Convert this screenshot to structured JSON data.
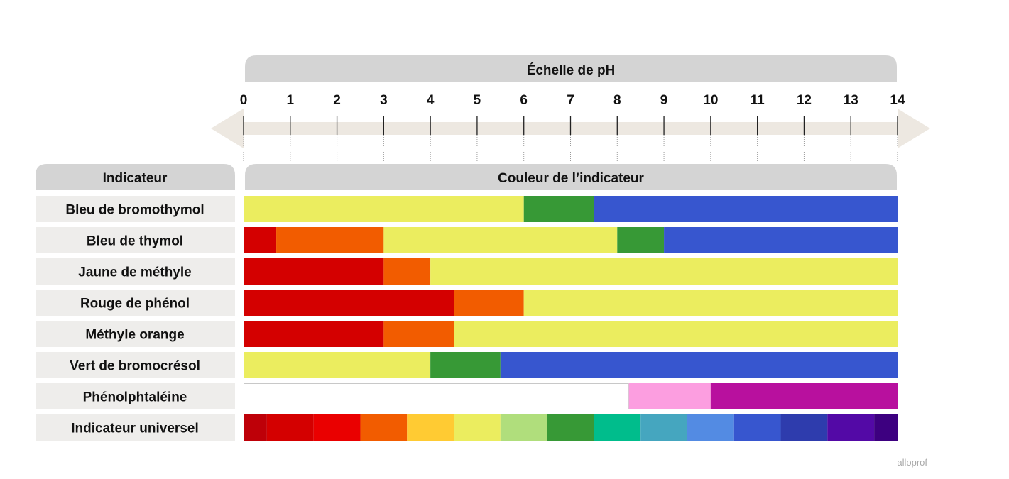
{
  "chart_data": {
    "type": "bar",
    "title": "Échelle de pH",
    "indicator_header": "Indicateur",
    "color_header": "Couleur de l’indicateur",
    "xlim": [
      0,
      14
    ],
    "ticks": [
      "0",
      "1",
      "2",
      "3",
      "4",
      "5",
      "6",
      "7",
      "8",
      "9",
      "10",
      "11",
      "12",
      "13",
      "14"
    ],
    "rows": [
      {
        "label": "Bleu de bromothymol",
        "segments": [
          {
            "from": 0,
            "to": 6.0,
            "color": "#ebed5f"
          },
          {
            "from": 6.0,
            "to": 7.5,
            "color": "#379936"
          },
          {
            "from": 7.5,
            "to": 14,
            "color": "#3756cf"
          }
        ]
      },
      {
        "label": "Bleu de thymol",
        "segments": [
          {
            "from": 0,
            "to": 0.7,
            "color": "#d40000"
          },
          {
            "from": 0.7,
            "to": 3.0,
            "color": "#f25c00"
          },
          {
            "from": 3.0,
            "to": 8.0,
            "color": "#ebed5f"
          },
          {
            "from": 8.0,
            "to": 9.0,
            "color": "#379936"
          },
          {
            "from": 9.0,
            "to": 14,
            "color": "#3756cf"
          }
        ]
      },
      {
        "label": "Jaune de méthyle",
        "segments": [
          {
            "from": 0,
            "to": 3.0,
            "color": "#d40000"
          },
          {
            "from": 3.0,
            "to": 4.0,
            "color": "#f25c00"
          },
          {
            "from": 4.0,
            "to": 14,
            "color": "#ebed5f"
          }
        ]
      },
      {
        "label": "Rouge de phénol",
        "segments": [
          {
            "from": 0,
            "to": 4.5,
            "color": "#d40000"
          },
          {
            "from": 4.5,
            "to": 6.0,
            "color": "#f25c00"
          },
          {
            "from": 6.0,
            "to": 14,
            "color": "#ebed5f"
          }
        ]
      },
      {
        "label": "Méthyle orange",
        "segments": [
          {
            "from": 0,
            "to": 3.0,
            "color": "#d40000"
          },
          {
            "from": 3.0,
            "to": 4.5,
            "color": "#f25c00"
          },
          {
            "from": 4.5,
            "to": 14,
            "color": "#ebed5f"
          }
        ]
      },
      {
        "label": "Vert de bromocrésol",
        "segments": [
          {
            "from": 0,
            "to": 4.0,
            "color": "#ebed5f"
          },
          {
            "from": 4.0,
            "to": 5.5,
            "color": "#379936"
          },
          {
            "from": 5.5,
            "to": 14,
            "color": "#3756cf"
          }
        ]
      },
      {
        "label": "Phénolphtaléine",
        "segments": [
          {
            "from": 0,
            "to": 8.25,
            "color": "#ffffff"
          },
          {
            "from": 8.25,
            "to": 10.0,
            "color": "#fc9ee0"
          },
          {
            "from": 10.0,
            "to": 14,
            "color": "#b8109e"
          }
        ]
      },
      {
        "label": "Indicateur universel",
        "segments": [
          {
            "from": 0,
            "to": 0.5,
            "color": "#be0008"
          },
          {
            "from": 0.5,
            "to": 1.5,
            "color": "#d40000"
          },
          {
            "from": 1.5,
            "to": 2.5,
            "color": "#ea0000"
          },
          {
            "from": 2.5,
            "to": 3.5,
            "color": "#f25c00"
          },
          {
            "from": 3.5,
            "to": 4.5,
            "color": "#ffcb33"
          },
          {
            "from": 4.5,
            "to": 5.5,
            "color": "#ebed5f"
          },
          {
            "from": 5.5,
            "to": 6.5,
            "color": "#b0de7c"
          },
          {
            "from": 6.5,
            "to": 7.5,
            "color": "#379936"
          },
          {
            "from": 7.5,
            "to": 8.5,
            "color": "#00bd8c"
          },
          {
            "from": 8.5,
            "to": 9.5,
            "color": "#45a6bf"
          },
          {
            "from": 9.5,
            "to": 10.5,
            "color": "#538be3"
          },
          {
            "from": 10.5,
            "to": 11.5,
            "color": "#3756cf"
          },
          {
            "from": 11.5,
            "to": 12.5,
            "color": "#2e3cad"
          },
          {
            "from": 12.5,
            "to": 13.5,
            "color": "#5309a6"
          },
          {
            "from": 13.5,
            "to": 14,
            "color": "#3d0080"
          }
        ]
      }
    ]
  },
  "branding": {
    "logo_text": "alloprof"
  }
}
